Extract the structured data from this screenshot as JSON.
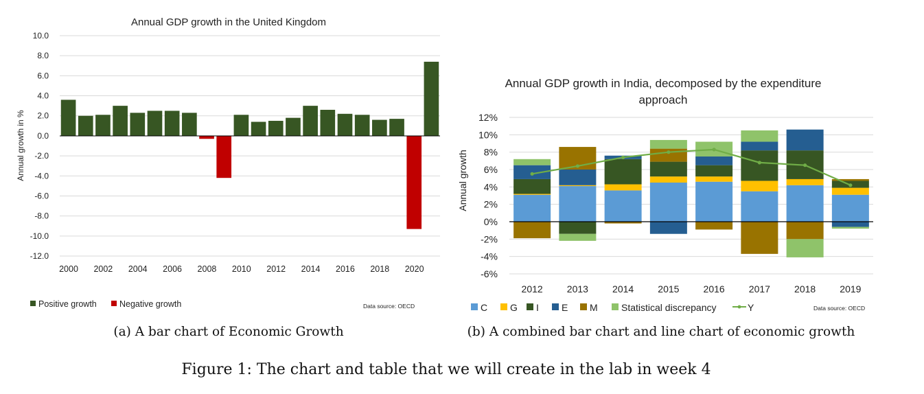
{
  "figure_caption": "Figure 1: The chart and table that we will create in the lab in week 4",
  "caption_a": "(a) A bar chart of Economic Growth",
  "caption_b": "(b) A combined bar chart and line chart of economic growth",
  "colors": {
    "positive": "#375623",
    "negative": "#C00000",
    "C": "#5B9BD5",
    "G": "#FFC000",
    "I": "#375623",
    "E": "#255E91",
    "M": "#997300",
    "SD": "#8FC36A",
    "Y": "#70AD47"
  },
  "chart_data": [
    {
      "type": "bar",
      "title": "Annual GDP growth in the United Kingdom",
      "xlabel": "",
      "ylabel": "Annual growth in %",
      "ylim": [
        -12,
        10
      ],
      "y_ticks": [
        "10.0",
        "8.0",
        "6.0",
        "4.0",
        "2.0",
        "0.0",
        "-2.0",
        "-4.0",
        "-6.0",
        "-8.0",
        "-10.0",
        "-12.0"
      ],
      "x_tick_labels": [
        "2000",
        "2002",
        "2004",
        "2006",
        "2008",
        "2010",
        "2012",
        "2014",
        "2016",
        "2018",
        "2020"
      ],
      "categories": [
        2000,
        2001,
        2002,
        2003,
        2004,
        2005,
        2006,
        2007,
        2008,
        2009,
        2010,
        2011,
        2012,
        2013,
        2014,
        2015,
        2016,
        2017,
        2018,
        2019,
        2020,
        2021
      ],
      "values": [
        3.6,
        2.0,
        2.1,
        3.0,
        2.3,
        2.5,
        2.5,
        2.3,
        -0.3,
        -4.2,
        2.1,
        1.4,
        1.5,
        1.8,
        3.0,
        2.6,
        2.2,
        2.1,
        1.6,
        1.7,
        -9.3,
        7.4
      ],
      "legend": [
        "Positive growth",
        "Negative growth"
      ],
      "source": "Data source: OECD"
    },
    {
      "type": "bar",
      "stacked": true,
      "title_lines": [
        "Annual GDP growth in India, decomposed by the expenditure",
        "approach"
      ],
      "ylabel": "Annual growth",
      "ylim": [
        -6,
        12
      ],
      "y_ticks": [
        "12%",
        "10%",
        "8%",
        "6%",
        "4%",
        "2%",
        "0%",
        "-2%",
        "-4%",
        "-6%"
      ],
      "categories": [
        "2012",
        "2013",
        "2014",
        "2015",
        "2016",
        "2017",
        "2018",
        "2019"
      ],
      "series": [
        {
          "name": "C",
          "values": [
            3.1,
            4.1,
            3.6,
            4.5,
            4.6,
            3.5,
            4.2,
            3.1
          ]
        },
        {
          "name": "G",
          "values": [
            0.1,
            0.1,
            0.7,
            0.7,
            0.6,
            1.2,
            0.7,
            0.8
          ]
        },
        {
          "name": "I",
          "values": [
            1.7,
            -1.4,
            2.9,
            1.7,
            1.3,
            3.5,
            3.3,
            0.8
          ]
        },
        {
          "name": "E",
          "values": [
            1.6,
            1.8,
            0.4,
            -1.4,
            1.0,
            1.0,
            2.4,
            -0.6
          ]
        },
        {
          "name": "M",
          "values": [
            -1.9,
            2.6,
            -0.2,
            1.5,
            -0.9,
            -3.7,
            -2.0,
            0.2
          ]
        },
        {
          "name": "Statistical discrepancy",
          "values": [
            0.7,
            -0.8,
            0.0,
            1.0,
            1.7,
            1.3,
            -2.1,
            -0.2
          ]
        }
      ],
      "line": {
        "name": "Y",
        "values": [
          5.5,
          6.4,
          7.4,
          8.0,
          8.3,
          6.8,
          6.5,
          4.2
        ]
      },
      "legend": [
        "C",
        "G",
        "I",
        "E",
        "M",
        "Statistical discrepancy",
        "Y"
      ],
      "source": "Data source: OECD"
    }
  ]
}
